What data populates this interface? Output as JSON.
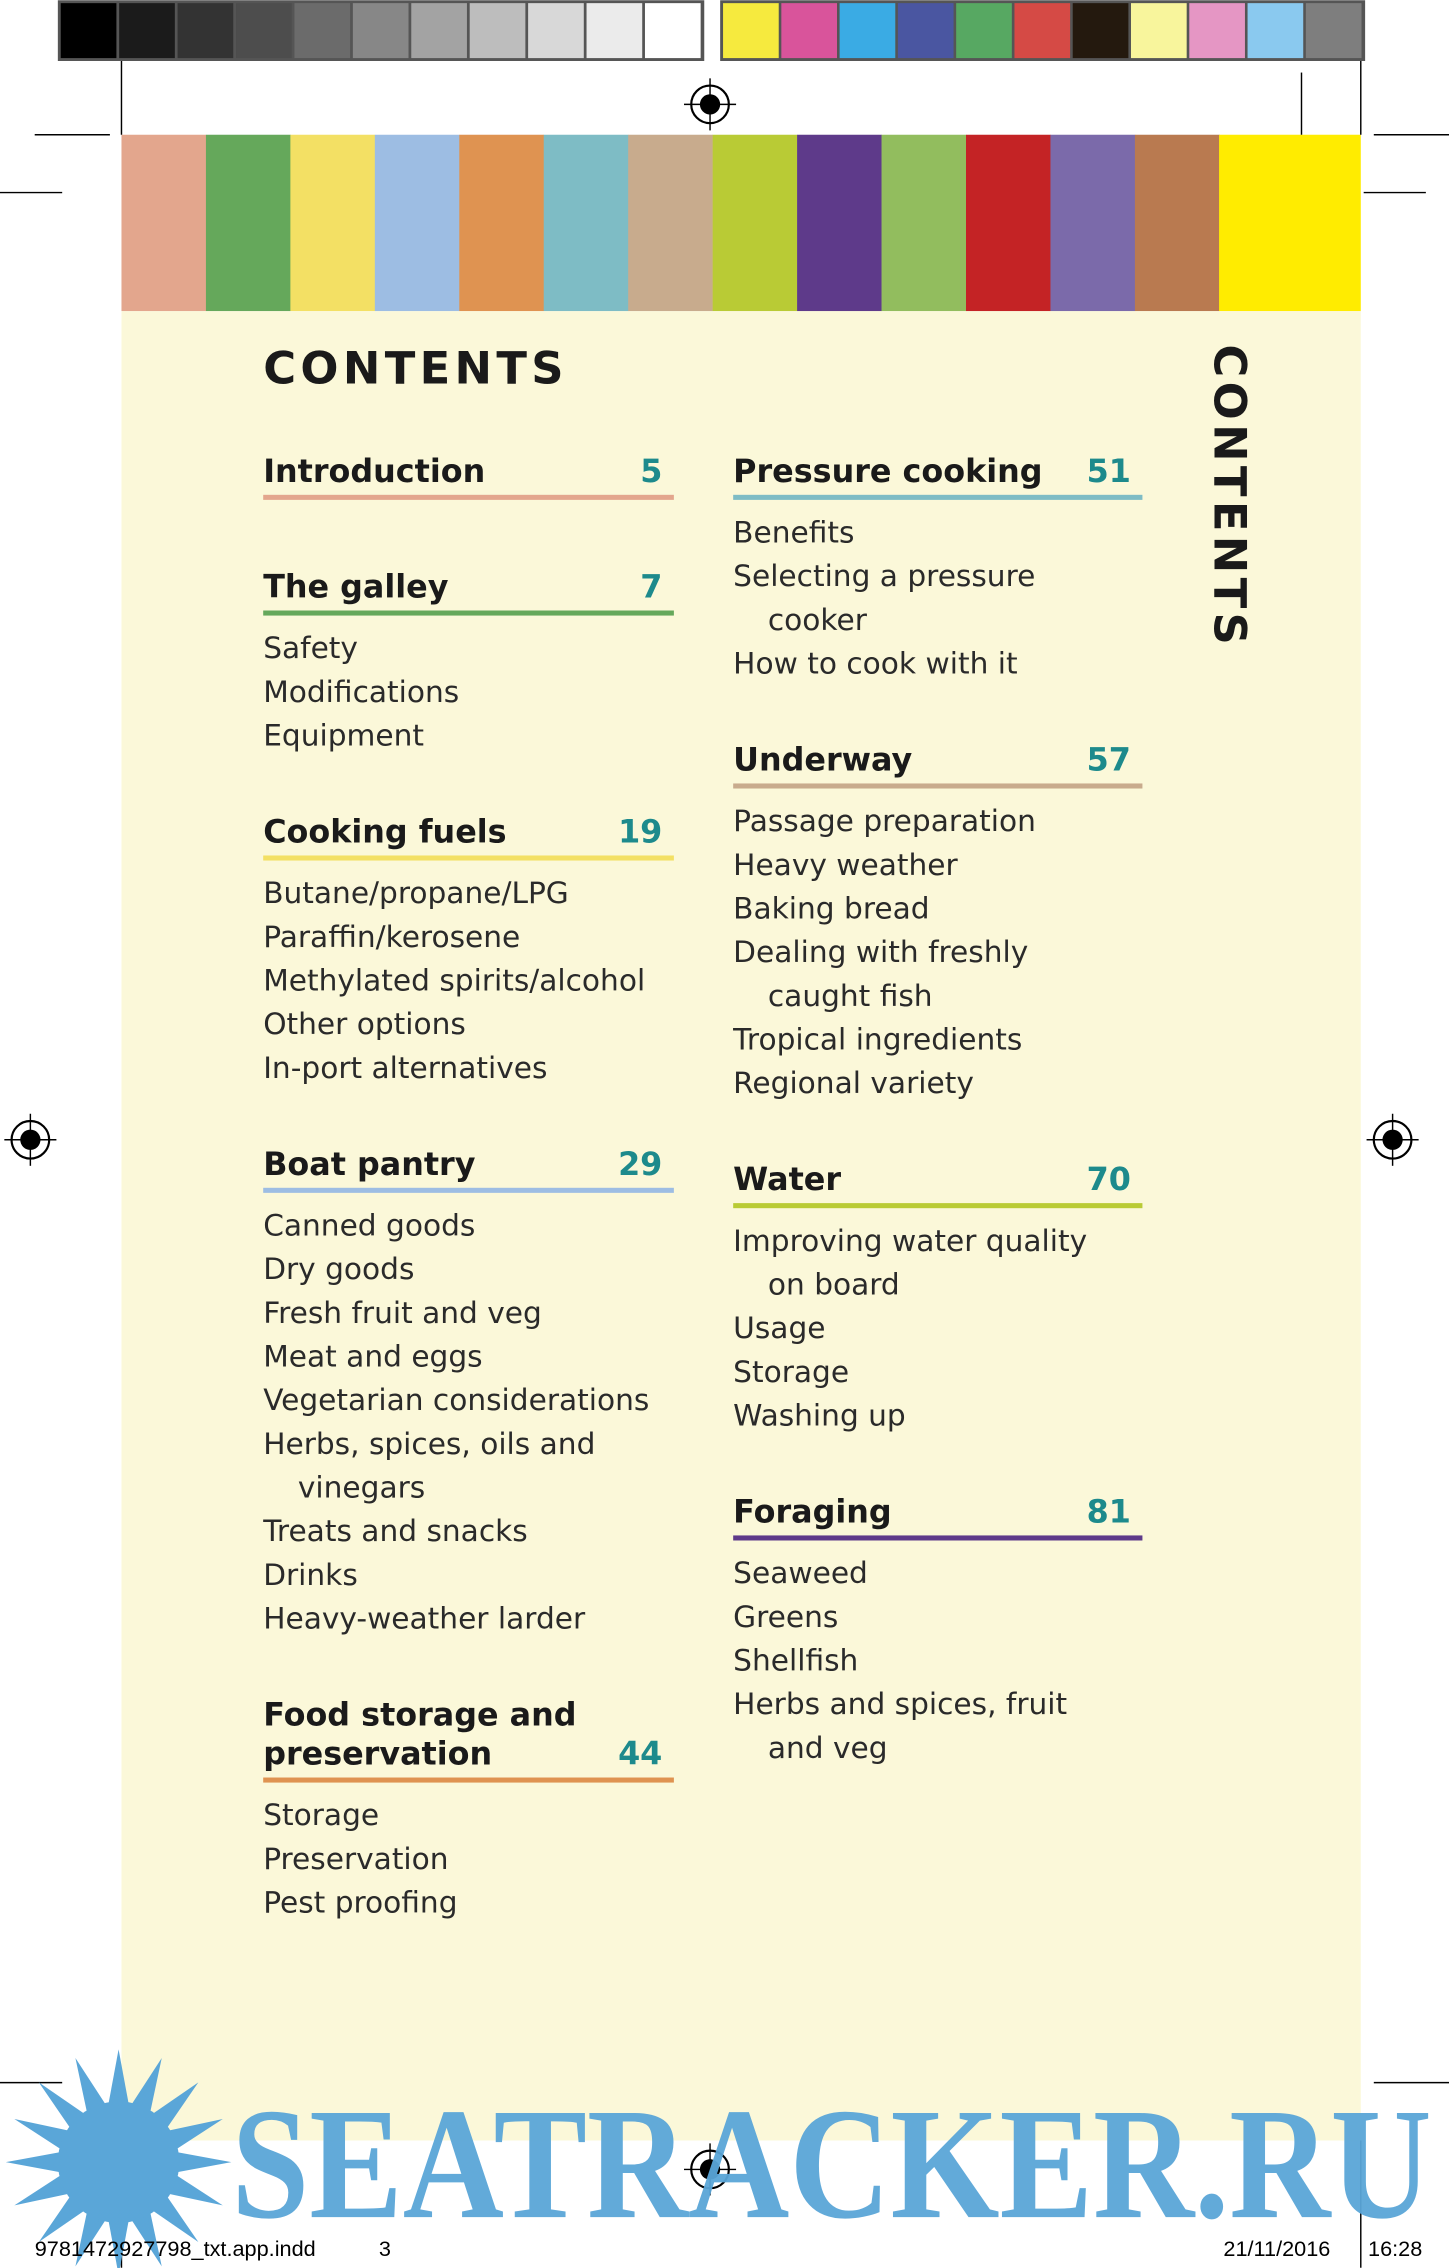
{
  "heading": "CONTENTS",
  "side_tab": "CONTENTS",
  "columns": [
    [
      {
        "title": [
          "Introduction"
        ],
        "page": "5",
        "color": "#e3a68d",
        "items": []
      },
      {
        "title": [
          "The galley"
        ],
        "page": "7",
        "color": "#65a85b",
        "items": [
          "Safety",
          "Modifications",
          "Equipment"
        ]
      },
      {
        "title": [
          "Cooking fuels"
        ],
        "page": "19",
        "color": "#f3e064",
        "items": [
          "Butane/propane/LPG",
          "Paraffin/kerosene",
          "Methylated spirits/alcohol",
          "Other options",
          "In-port alternatives"
        ]
      },
      {
        "title": [
          "Boat pantry"
        ],
        "page": "29",
        "color": "#9dbde3",
        "items": [
          "Canned goods",
          "Dry goods",
          "Fresh fruit and veg",
          "Meat and eggs",
          "Vegetarian considerations",
          [
            "Herbs, spices, oils and",
            "vinegars"
          ],
          "Treats and snacks",
          "Drinks",
          "Heavy-weather larder"
        ]
      },
      {
        "title": [
          "Food storage and",
          "preservation"
        ],
        "page": "44",
        "color": "#df9351",
        "items": [
          "Storage",
          "Preservation",
          "Pest proofing"
        ]
      }
    ],
    [
      {
        "title": [
          "Pressure cooking"
        ],
        "page": "51",
        "color": "#7ebcc5",
        "items": [
          "Benefits",
          [
            "Selecting a pressure",
            "cooker"
          ],
          "How to cook with it"
        ]
      },
      {
        "title": [
          "Underway"
        ],
        "page": "57",
        "color": "#c8ab8d",
        "items": [
          "Passage preparation",
          "Heavy weather",
          "Baking bread",
          [
            "Dealing with freshly",
            "caught fish"
          ],
          "Tropical ingredients",
          "Regional variety"
        ]
      },
      {
        "title": [
          "Water"
        ],
        "page": "70",
        "color": "#b9cb35",
        "items": [
          [
            "Improving water quality",
            "on board"
          ],
          "Usage",
          "Storage",
          "Washing up"
        ]
      },
      {
        "title": [
          "Foraging"
        ],
        "page": "81",
        "color": "#5e3a8a",
        "items": [
          "Seaweed",
          "Greens",
          "Shellfish",
          [
            "Herbs and spices, fruit",
            "and veg"
          ]
        ]
      }
    ]
  ],
  "watermark": "SEATRACKER.RU",
  "footer": {
    "file": "9781472927798_txt.app.indd",
    "page": "3",
    "date": "21/11/2016",
    "time": "16:28"
  }
}
